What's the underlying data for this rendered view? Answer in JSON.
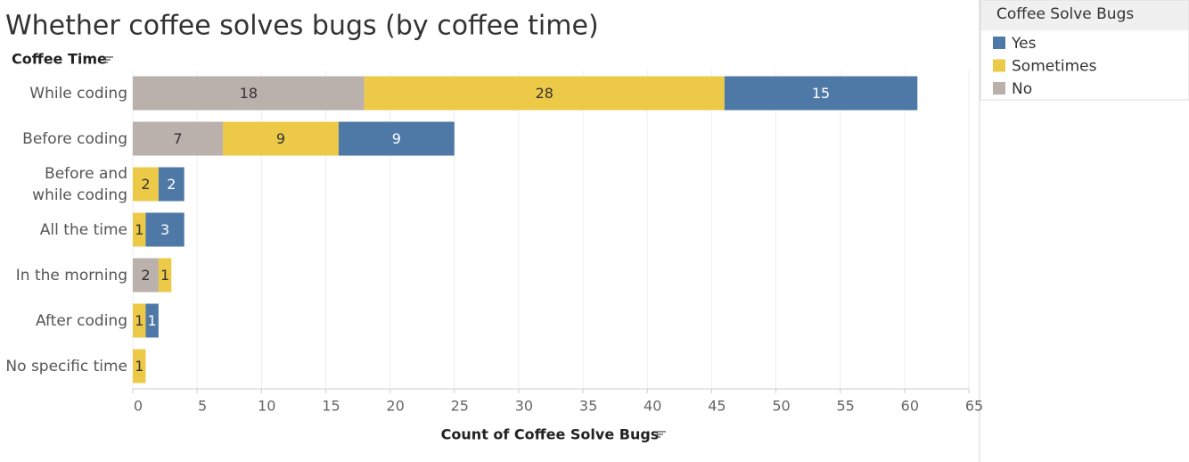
{
  "chart_data": {
    "type": "stacked-barh",
    "title": "Whether coffee solves bugs (by coffee time)",
    "y_label": "Coffee Time",
    "x_label": "Count of Coffee Solve Bugs",
    "legend_title": "Coffee Solve Bugs",
    "legend": "right",
    "categories": [
      "While coding",
      "Before coding",
      "Before and\nwhile coding",
      "All the time",
      "In the morning",
      "After coding",
      "No specific time"
    ],
    "series": [
      {
        "name": "Yes",
        "color": "#4e79a7",
        "values": [
          15,
          9,
          2,
          3,
          null,
          1,
          null
        ]
      },
      {
        "name": "Sometimes",
        "color": "#edc948",
        "values": [
          28,
          9,
          2,
          1,
          1,
          1,
          1
        ]
      },
      {
        "name": "No",
        "color": "#bab0ac",
        "values": [
          18,
          7,
          null,
          null,
          2,
          null,
          null
        ]
      }
    ],
    "xlim": [
      0,
      65
    ],
    "xticks": [
      0,
      5,
      10,
      15,
      20,
      25,
      30,
      35,
      40,
      45,
      50,
      55,
      60,
      65
    ],
    "grid": true
  }
}
